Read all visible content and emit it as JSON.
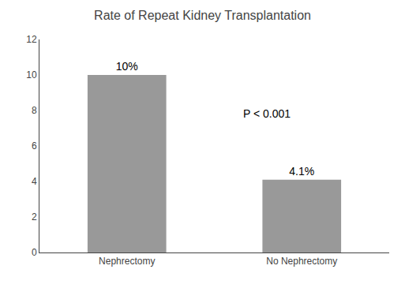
{
  "chart_data": {
    "type": "bar",
    "title": "Rate of Repeat Kidney Transplantation",
    "categories": [
      "Nephrectomy",
      "No Nephrectomy"
    ],
    "values": [
      10,
      4.1
    ],
    "value_labels": [
      "10%",
      "4.1%"
    ],
    "data_labels": true,
    "color": "#999999",
    "ylim": [
      0,
      12
    ],
    "yticks": [
      0,
      2,
      4,
      6,
      8,
      10,
      12
    ],
    "grid": false,
    "annotation": "P < 0.001"
  }
}
